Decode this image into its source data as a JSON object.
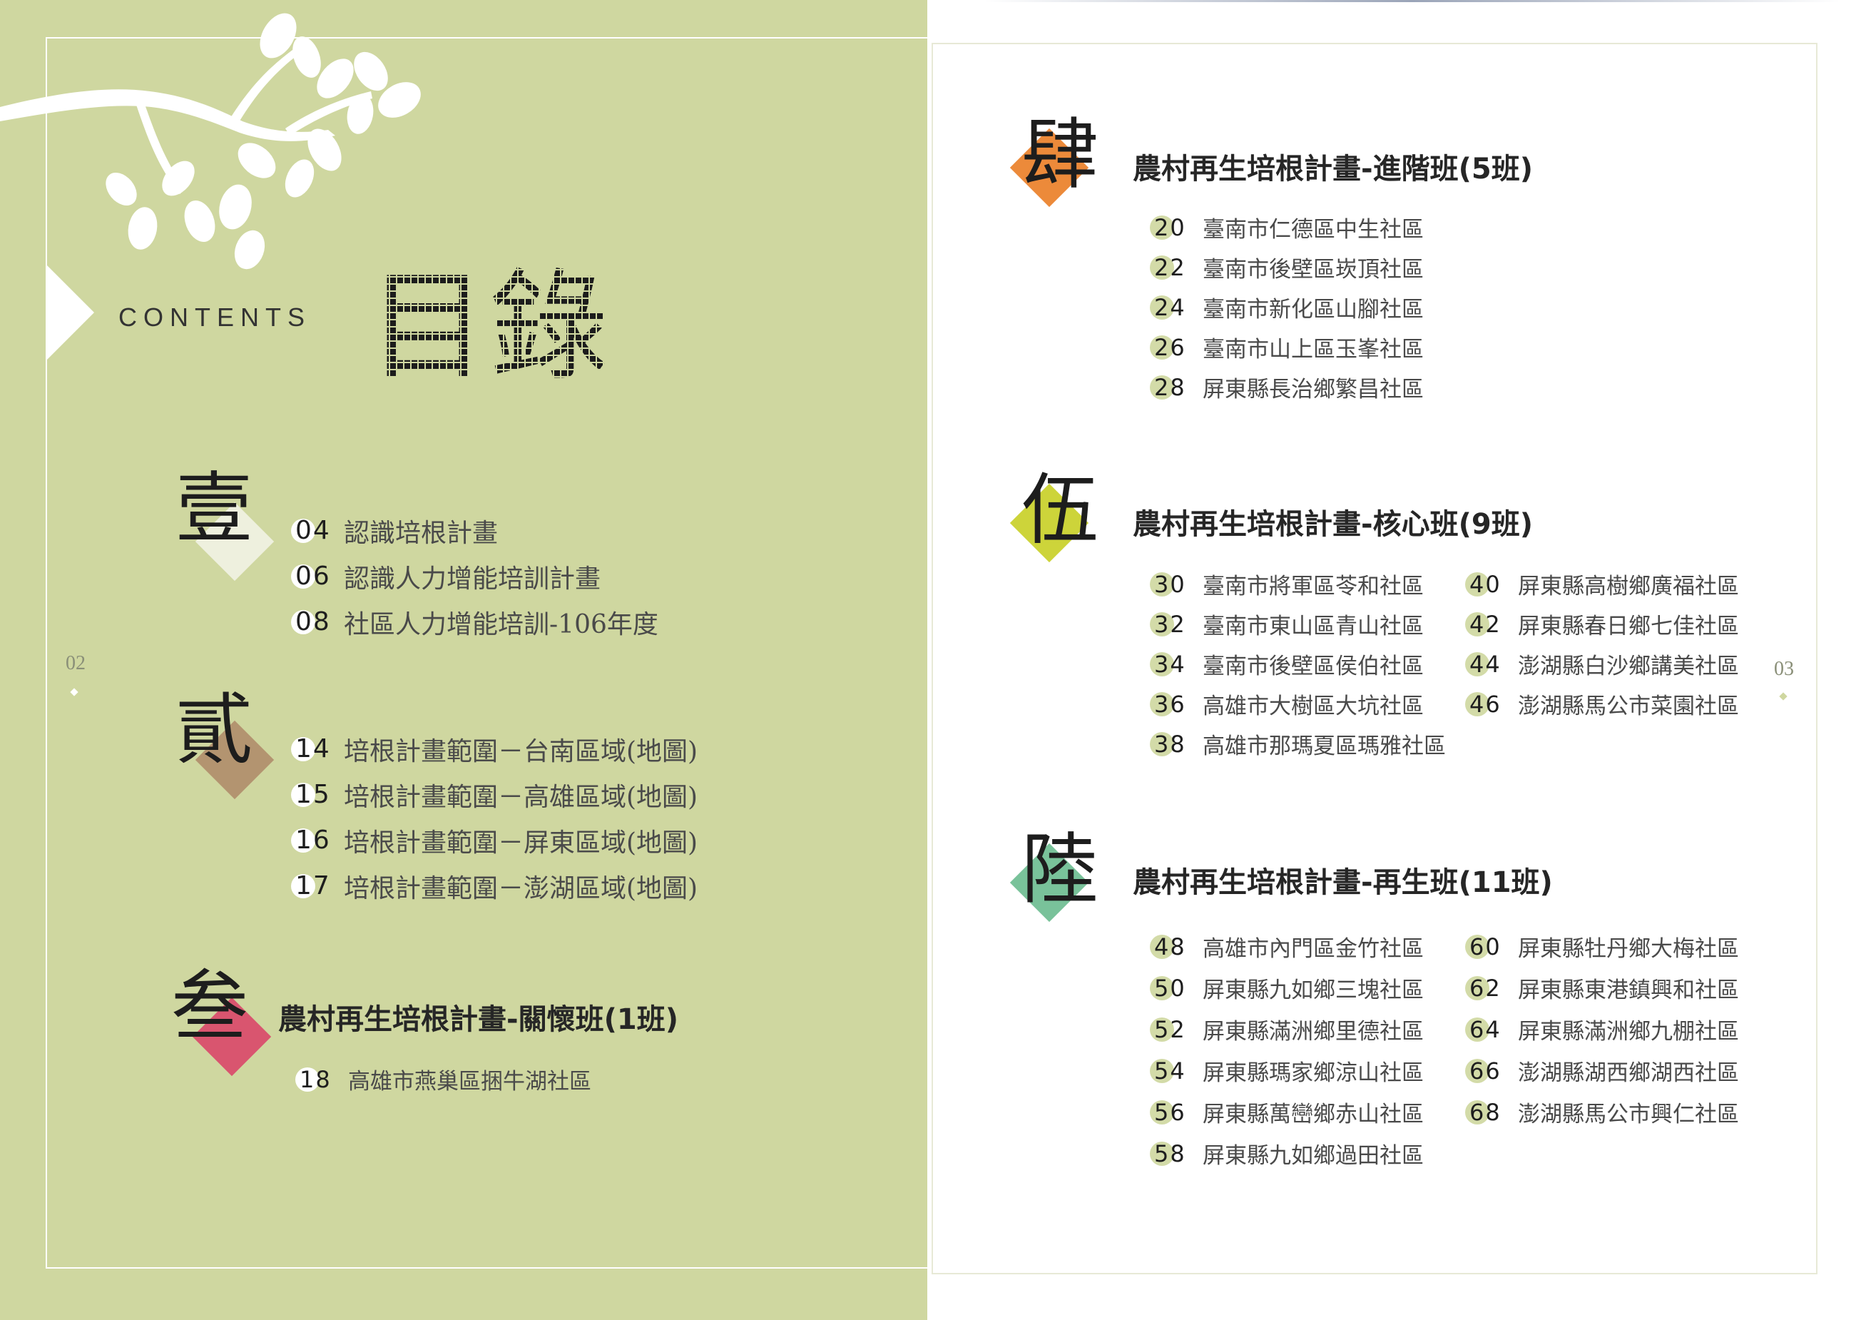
{
  "header": {
    "contents_label": "CONTENTS",
    "title": "目錄"
  },
  "page_numbers": {
    "left": "02",
    "right": "03"
  },
  "colors": {
    "left_page_bg": "#cfd7a0",
    "section1": "#eef0de",
    "section2": "#b39470",
    "section3": "#d9556f",
    "section4": "#ec8a3a",
    "section5": "#cdd43a",
    "section6": "#79c29a",
    "badge_left": "#ffffff",
    "badge_right": "#d3dba8"
  },
  "sections": [
    {
      "char": "壹",
      "title": "",
      "entries": [
        {
          "page": "04",
          "text": "認識培根計畫"
        },
        {
          "page": "06",
          "text": "認識人力增能培訓計畫"
        },
        {
          "page": "08",
          "text": "社區人力增能培訓-106年度"
        }
      ]
    },
    {
      "char": "貳",
      "title": "",
      "entries": [
        {
          "page": "14",
          "text": "培根計畫範圍－台南區域(地圖)"
        },
        {
          "page": "15",
          "text": "培根計畫範圍－高雄區域(地圖)"
        },
        {
          "page": "16",
          "text": "培根計畫範圍－屏東區域(地圖)"
        },
        {
          "page": "17",
          "text": "培根計畫範圍－澎湖區域(地圖)"
        }
      ]
    },
    {
      "char": "叁",
      "title": "農村再生培根計畫-關懷班(1班)",
      "entries": [
        {
          "page": "18",
          "text": "高雄市燕巢區捆牛湖社區"
        }
      ]
    },
    {
      "char": "肆",
      "title": "農村再生培根計畫-進階班(5班)",
      "entries": [
        {
          "page": "20",
          "text": "臺南市仁德區中生社區"
        },
        {
          "page": "22",
          "text": "臺南市後壁區崁頂社區"
        },
        {
          "page": "24",
          "text": "臺南市新化區山腳社區"
        },
        {
          "page": "26",
          "text": "臺南市山上區玉峯社區"
        },
        {
          "page": "28",
          "text": "屏東縣長治鄉繁昌社區"
        }
      ]
    },
    {
      "char": "伍",
      "title": "農村再生培根計畫-核心班(9班)",
      "entries": [
        {
          "page": "30",
          "text": "臺南市將軍區苓和社區"
        },
        {
          "page": "32",
          "text": "臺南市東山區青山社區"
        },
        {
          "page": "34",
          "text": "臺南市後壁區侯伯社區"
        },
        {
          "page": "36",
          "text": "高雄市大樹區大坑社區"
        },
        {
          "page": "38",
          "text": "高雄市那瑪夏區瑪雅社區"
        },
        {
          "page": "40",
          "text": "屏東縣高樹鄉廣福社區"
        },
        {
          "page": "42",
          "text": "屏東縣春日鄉七佳社區"
        },
        {
          "page": "44",
          "text": "澎湖縣白沙鄉講美社區"
        },
        {
          "page": "46",
          "text": "澎湖縣馬公市菜園社區"
        }
      ]
    },
    {
      "char": "陸",
      "title": "農村再生培根計畫-再生班(11班)",
      "entries": [
        {
          "page": "48",
          "text": "高雄市內門區金竹社區"
        },
        {
          "page": "50",
          "text": "屏東縣九如鄉三塊社區"
        },
        {
          "page": "52",
          "text": "屏東縣滿洲鄉里德社區"
        },
        {
          "page": "54",
          "text": "屏東縣瑪家鄉涼山社區"
        },
        {
          "page": "56",
          "text": "屏東縣萬巒鄉赤山社區"
        },
        {
          "page": "58",
          "text": "屏東縣九如鄉過田社區"
        },
        {
          "page": "60",
          "text": "屏東縣牡丹鄉大梅社區"
        },
        {
          "page": "62",
          "text": "屏東縣東港鎮興和社區"
        },
        {
          "page": "64",
          "text": "屏東縣滿洲鄉九棚社區"
        },
        {
          "page": "66",
          "text": "澎湖縣湖西鄉湖西社區"
        },
        {
          "page": "68",
          "text": "澎湖縣馬公市興仁社區"
        }
      ]
    }
  ]
}
